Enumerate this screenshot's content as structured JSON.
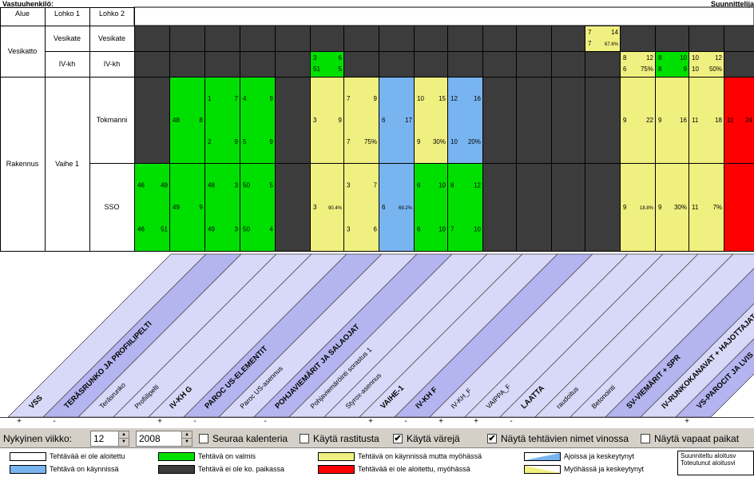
{
  "header": {
    "responsible_label": "Vastuuhenkilö:",
    "designer_label": "Suunnittelija",
    "col_area": "Alue",
    "col_block1": "Lohko 1",
    "col_block2": "Lohko 2"
  },
  "rows": {
    "vesikatto": "Vesikatto",
    "vesikate": "Vesikate",
    "ivkh": "IV-kh",
    "rakennus": "Rakennus",
    "vaihe1": "Vaihe 1",
    "tokmanni": "Tokmanni",
    "sso": "SSO"
  },
  "colors": {
    "dark": "#3c3c3c",
    "green": "#00e000",
    "yellow": "#f0f080",
    "blue": "#78b4f0",
    "red": "#ff0000",
    "lavender": "#d8d8f8",
    "lavender_dark": "#b4b4f0"
  },
  "cells": [
    {
      "col": 8,
      "row": "ivkh",
      "color": "green",
      "n": [
        "3",
        "6",
        "51",
        "5"
      ]
    },
    {
      "col": 16,
      "row": "vesikate",
      "color": "yellow",
      "n": [
        "7",
        "14",
        "7",
        "67.6%"
      ]
    },
    {
      "col": 17,
      "row": "ivkh",
      "color": "yellow",
      "n": [
        "8",
        "12",
        "6",
        "75%"
      ]
    },
    {
      "col": 18,
      "row": "ivkh",
      "color": "green",
      "n": [
        "8",
        "10",
        "8",
        "9"
      ]
    },
    {
      "col": 19,
      "row": "ivkh",
      "color": "yellow",
      "n": [
        "10",
        "12",
        "10",
        "50%"
      ]
    },
    {
      "col": 4,
      "row": "tok",
      "color": "green",
      "n": [
        "48",
        "8",
        "",
        ""
      ]
    },
    {
      "col": 5,
      "row": "tok",
      "color": "green",
      "n": [
        "1",
        "7",
        "2",
        "9"
      ]
    },
    {
      "col": 6,
      "row": "tok",
      "color": "green",
      "n": [
        "4",
        "9",
        "5",
        "9"
      ]
    },
    {
      "col": 8,
      "row": "tok",
      "color": "yellow",
      "n": [
        "3",
        "9",
        "",
        ""
      ]
    },
    {
      "col": 9,
      "row": "tok",
      "color": "yellow",
      "n": [
        "7",
        "9",
        "7",
        "75%"
      ]
    },
    {
      "col": 10,
      "row": "tok",
      "color": "blue",
      "n": [
        "6",
        "17",
        "",
        ""
      ]
    },
    {
      "col": 11,
      "row": "tok",
      "color": "yellow",
      "n": [
        "10",
        "15",
        "9",
        "30%"
      ]
    },
    {
      "col": 12,
      "row": "tok",
      "color": "blue",
      "n": [
        "12",
        "16",
        "10",
        "20%"
      ]
    },
    {
      "col": 17,
      "row": "tok",
      "color": "yellow",
      "n": [
        "9",
        "22",
        "",
        ""
      ]
    },
    {
      "col": 18,
      "row": "tok",
      "color": "yellow",
      "n": [
        "9",
        "16",
        "",
        ""
      ]
    },
    {
      "col": 19,
      "row": "tok",
      "color": "yellow",
      "n": [
        "11",
        "18",
        "",
        ""
      ]
    },
    {
      "col": 20,
      "row": "tok",
      "color": "red",
      "n": [
        "11",
        "24",
        "",
        ""
      ]
    },
    {
      "col": 3,
      "row": "sso",
      "color": "green",
      "n": [
        "46",
        "49",
        "46",
        "51"
      ]
    },
    {
      "col": 4,
      "row": "sso",
      "color": "green",
      "n": [
        "49",
        "9",
        "",
        ""
      ]
    },
    {
      "col": 5,
      "row": "sso",
      "color": "green",
      "n": [
        "48",
        "3",
        "49",
        "3"
      ]
    },
    {
      "col": 6,
      "row": "sso",
      "color": "green",
      "n": [
        "50",
        "5",
        "50",
        "4"
      ]
    },
    {
      "col": 8,
      "row": "sso",
      "color": "yellow",
      "n": [
        "3",
        "90.4%",
        "",
        ""
      ]
    },
    {
      "col": 9,
      "row": "sso",
      "color": "yellow",
      "n": [
        "3",
        "7",
        "3",
        "6"
      ]
    },
    {
      "col": 10,
      "row": "sso",
      "color": "blue",
      "n": [
        "6",
        "69.2%",
        "",
        ""
      ]
    },
    {
      "col": 11,
      "row": "sso",
      "color": "green",
      "n": [
        "6",
        "10",
        "6",
        "10"
      ]
    },
    {
      "col": 12,
      "row": "sso",
      "color": "green",
      "n": [
        "8",
        "12",
        "7",
        "10"
      ]
    },
    {
      "col": 17,
      "row": "sso",
      "color": "yellow",
      "n": [
        "9",
        "18.8%",
        "",
        ""
      ]
    },
    {
      "col": 18,
      "row": "sso",
      "color": "yellow",
      "n": [
        "9",
        "30%",
        "",
        ""
      ]
    },
    {
      "col": 19,
      "row": "sso",
      "color": "yellow",
      "n": [
        "11",
        "7%",
        "",
        ""
      ]
    },
    {
      "col": 20,
      "row": "sso",
      "color": "red",
      "n": [
        "",
        "",
        "",
        ""
      ]
    }
  ],
  "tasks": [
    {
      "label": "VSS",
      "toggle": "+",
      "level": 0
    },
    {
      "label": "TERÄSRUNKO JA PROFIILIPELTI",
      "toggle": "-",
      "level": 0
    },
    {
      "label": "Teräsrunko",
      "toggle": "",
      "level": 1
    },
    {
      "label": "Profiilipelti",
      "toggle": "",
      "level": 1
    },
    {
      "label": "IV-KH G",
      "toggle": "+",
      "level": 0
    },
    {
      "label": "PAROC US-ELEMENTIT",
      "toggle": "-",
      "level": 0
    },
    {
      "label": "Paroc US-asennus",
      "toggle": "",
      "level": 1
    },
    {
      "label": "POHJAVIEMÄRIT JA SALAOJAT",
      "toggle": "-",
      "level": 0
    },
    {
      "label": "Pohjaviemäröinti sorastus 1",
      "toggle": "",
      "level": 1
    },
    {
      "label": "Styrox-asennus",
      "toggle": "",
      "level": 1
    },
    {
      "label": "VAIHE-1",
      "toggle": "+",
      "level": 0
    },
    {
      "label": "IV-KH F",
      "toggle": "-",
      "level": 0
    },
    {
      "label": "IV-KH_F",
      "toggle": "+",
      "level": 1
    },
    {
      "label": "VAIPPA_F",
      "toggle": "+",
      "level": 1
    },
    {
      "label": "LAATTA",
      "toggle": "-",
      "level": 0
    },
    {
      "label": "raudoitus",
      "toggle": "",
      "level": 1
    },
    {
      "label": "Betonointi",
      "toggle": "",
      "level": 1
    },
    {
      "label": "SV-VIEMÄRIT + SPR",
      "toggle": "",
      "level": 0
    },
    {
      "label": "IV-RUNKOKANAVAT + HAJOTTAJAT",
      "toggle": "",
      "level": 0
    },
    {
      "label": "VS-PAROCIT JA LVIS",
      "toggle": "+",
      "level": 0
    }
  ],
  "controls": {
    "current_week_label": "Nykyinen viikko:",
    "week_value": "12",
    "year_value": "2008",
    "options": [
      {
        "label": "Seuraa kalenteria",
        "checked": false
      },
      {
        "label": "Käytä rastitusta",
        "checked": false
      },
      {
        "label": "Käytä värejä",
        "checked": true
      },
      {
        "label": "Näytä tehtävien nimet vinossa",
        "checked": true
      },
      {
        "label": "Näytä vapaat paikat",
        "checked": false
      }
    ]
  },
  "legend": [
    {
      "label": "Tehtävää ei ole aloitettu",
      "color": "#ffffff"
    },
    {
      "label": "Tehtävä on käynnissä",
      "color": "#78b4f0"
    },
    {
      "label": "Tehtävä on valmis",
      "color": "#00e000"
    },
    {
      "label": "Tehtävä ei ole ko. paikassa",
      "color": "#3c3c3c"
    },
    {
      "label": "Tehtävä on käynnissä mutta myöhässä",
      "color": "#f0f080"
    },
    {
      "label": "Tehtävää ei ole aloitettu, myöhässä",
      "color": "#ff0000"
    },
    {
      "label": "Ajoissa ja keskeytynyt",
      "color": "#78b4f0"
    },
    {
      "label": "Myöhässä ja keskeytynyt",
      "color": "#f0f080"
    }
  ],
  "legend_info": {
    "line1": "Suunniteltu aloitusv",
    "line2": "Toteutunut aloitusvi"
  }
}
